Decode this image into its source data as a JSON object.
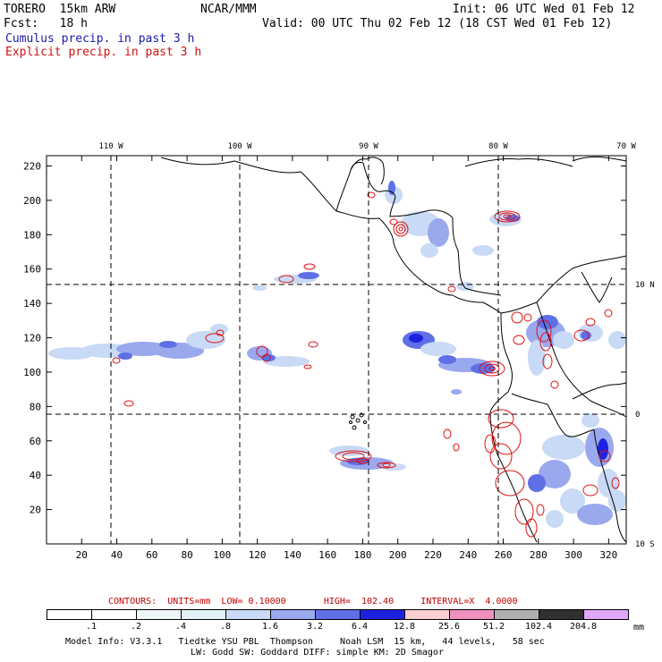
{
  "header": {
    "model": "TORERO  15km ARW",
    "org": "NCAR/MMM",
    "init": "Init: 06 UTC Wed 01 Feb 12",
    "fcst": "Fcst:   18 h",
    "valid": "Valid: 00 UTC Thu 02 Feb 12 (18 CST Wed 01 Feb 12)",
    "cumulus_label": "Cumulus precip. in past 3 h",
    "explicit_label": "Explicit precip. in past 3 h",
    "cumulus_color": "#1a1aa8",
    "explicit_color": "#d01010"
  },
  "map": {
    "lon_labels": [
      "110 W",
      "100 W",
      "90 W",
      "80 W",
      "70 W"
    ],
    "lat_labels": [
      "10 N",
      "0",
      "10 S"
    ],
    "x_ticks": [
      "20",
      "40",
      "60",
      "80",
      "100",
      "120",
      "140",
      "160",
      "180",
      "200",
      "220",
      "240",
      "260",
      "280",
      "300",
      "320"
    ],
    "y_ticks": [
      "20",
      "40",
      "60",
      "80",
      "100",
      "120",
      "140",
      "160",
      "180",
      "200",
      "220"
    ],
    "explicit_contour_color": "#e01010",
    "coast_color": "#000000"
  },
  "contour_info": {
    "label": "CONTOURS:  UNITS=mm  LOW= 0.10000       HIGH=  102.40     INTERVAL=X  4.0000",
    "color": "#c00000"
  },
  "colorbar": {
    "unit": "mm",
    "labels": [
      ".1",
      ".2",
      ".4",
      ".8",
      "1.6",
      "3.2",
      "6.4",
      "12.8",
      "25.6",
      "51.2",
      "102.4",
      "204.8"
    ],
    "colors": [
      "#ffffff",
      "#ffffff",
      "#eef6f8",
      "#e2f2f7",
      "#c8daf5",
      "#9aa8ee",
      "#5f6fe6",
      "#1c22e0",
      "#f8d0d0",
      "#f090c0",
      "#b0b0b0",
      "#303030",
      "#e0a8f8"
    ]
  },
  "footer": {
    "line1": "Model Info: V3.3.1   Tiedtke YSU PBL  Thompson     Noah LSM  15 km,   44 levels,   58 sec",
    "line2": "LW: Godd SW: Goddard DIFF: simple KM: 2D Smagor"
  }
}
